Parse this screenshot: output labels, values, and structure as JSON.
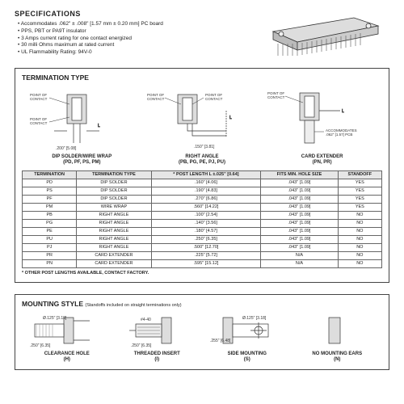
{
  "specs": {
    "title": "SPECIFICATIONS",
    "items": [
      "Accommodates .062\" ± .008\" [1.57 mm ± 0.20 mm] PC board",
      "PPS, PBT or PA9T insulator",
      "3 Amps current rating for one contact energized",
      "30 milli Ohms maximum at rated current",
      "UL Flammability Rating: 94V-0"
    ]
  },
  "termination": {
    "title": "TERMINATION TYPE",
    "diagrams": {
      "d1": {
        "label": "DIP SOLDER/WIRE WRAP",
        "sub": "(PD, PF, PS, PM)",
        "dim": ".200\" [5.08]",
        "poc": "POINT OF\nCONTACT"
      },
      "d2": {
        "label": "RIGHT ANGLE",
        "sub": "(PB, PG, PE, PJ, PU)",
        "dim": ".150\" [3.81]",
        "poc": "POINT OF\nCONTACT"
      },
      "d3": {
        "label": "CARD EXTENDER",
        "sub": "(PN, PR)",
        "acc": "ACCOMMODATES\n.062\" [1.57] PCB",
        "poc": "POINT OF\nCONTACT"
      }
    },
    "headers": [
      "TERMINATION",
      "TERMINATION TYPE",
      "* POST LENGTH L ±.025\" [0.64]",
      "FITS MIN. HOLE SIZE",
      "STANDOFF"
    ],
    "rows": [
      [
        "PD",
        "DIP SOLDER",
        ".160\" [4.06]",
        ".043\" [1.09]",
        "YES"
      ],
      [
        "PS",
        "DIP SOLDER",
        ".190\" [4.83]",
        ".043\" [1.09]",
        "YES"
      ],
      [
        "PF",
        "DIP SOLDER",
        ".270\" [6.86]",
        ".043\" [1.09]",
        "YES"
      ],
      [
        "PM",
        "WIRE WRAP",
        ".560\" [14.22]",
        ".043\" [1.09]",
        "YES"
      ],
      [
        "PB",
        "RIGHT ANGLE",
        ".100\" [2.54]",
        ".043\" [1.09]",
        "NO"
      ],
      [
        "PG",
        "RIGHT ANGLE",
        ".140\" [3.56]",
        ".043\" [1.09]",
        "NO"
      ],
      [
        "PE",
        "RIGHT ANGLE",
        ".180\" [4.57]",
        ".043\" [1.09]",
        "NO"
      ],
      [
        "PU",
        "RIGHT ANGLE",
        ".250\" [6.35]",
        ".043\" [1.09]",
        "NO"
      ],
      [
        "PJ",
        "RIGHT ANGLE",
        ".500\" [12.70]",
        ".043\" [1.09]",
        "NO"
      ],
      [
        "PR",
        "CARD EXTENDER",
        ".225\" [5.72]",
        "N/A",
        "NO"
      ],
      [
        "PN",
        "CARD EXTENDER",
        ".595\" [15.12]",
        "N/A",
        "NO"
      ]
    ],
    "footnote": "* OTHER POST LENGTHS AVAILABLE, CONTACT FACTORY."
  },
  "mounting": {
    "title": "MOUNTING STYLE",
    "subtitle": "(Standoffs included on straight terminations only)",
    "items": [
      {
        "label": "CLEARANCE HOLE",
        "sub": "(H)",
        "dim1": "Ø.125\" [3.18]",
        "dim2": ".250\" [6.35]"
      },
      {
        "label": "THREADED INSERT",
        "sub": "(I)",
        "dim1": "#4-40",
        "dim2": ".250\" [6.35]"
      },
      {
        "label": "SIDE MOUNTING",
        "sub": "(S)",
        "dim1": "Ø.125\" [3.18]",
        "dim2": ".255\" [6.48]"
      },
      {
        "label": "NO MOUNTING EARS",
        "sub": "(N)",
        "dim1": "",
        "dim2": ""
      }
    ]
  },
  "colors": {
    "line": "#333333",
    "fill": "#cccccc",
    "hatch": "#888888"
  }
}
